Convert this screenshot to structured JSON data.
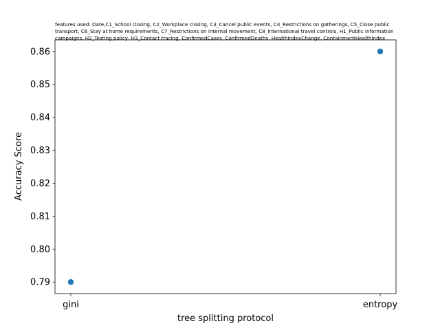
{
  "chart_data": {
    "type": "scatter",
    "title": "features used: Date,C1_School closing, C2_Workplace closing, C3_Cancel public events, C4_Restrictions on gatherings, C5_Close public\ntransport, C6_Stay at home requirements, C7_Restrictions on internal movement, C8_International travel controls, H1_Public information\ncampaigns, H2_Testing policy, H3_Contact tracing, ConfirmedCases, ConfirmedDeaths, HealthIndexChange, ContainmentHealthIndex",
    "xlabel": "tree splitting protocol",
    "ylabel": "Accuracy Score",
    "categories": [
      "gini",
      "entropy"
    ],
    "values": [
      0.79,
      0.86
    ],
    "ylim": [
      0.7865,
      0.8635
    ],
    "yticks": [
      "0.79",
      "0.80",
      "0.81",
      "0.82",
      "0.83",
      "0.84",
      "0.85",
      "0.86"
    ],
    "grid": false,
    "point_color": "#1f77b4"
  }
}
